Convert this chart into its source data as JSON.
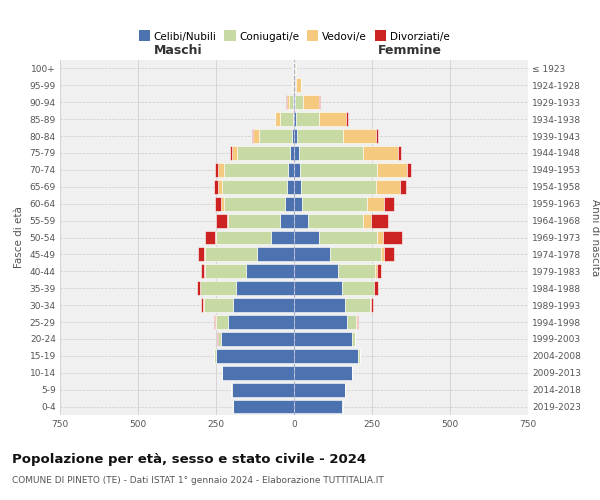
{
  "age_groups": [
    "0-4",
    "5-9",
    "10-14",
    "15-19",
    "20-24",
    "25-29",
    "30-34",
    "35-39",
    "40-44",
    "45-49",
    "50-54",
    "55-59",
    "60-64",
    "65-69",
    "70-74",
    "75-79",
    "80-84",
    "85-89",
    "90-94",
    "95-99",
    "100+"
  ],
  "birth_years": [
    "2019-2023",
    "2014-2018",
    "2009-2013",
    "2004-2008",
    "1999-2003",
    "1994-1998",
    "1989-1993",
    "1984-1988",
    "1979-1983",
    "1974-1978",
    "1969-1973",
    "1964-1968",
    "1959-1963",
    "1954-1958",
    "1949-1953",
    "1944-1948",
    "1939-1943",
    "1934-1938",
    "1929-1933",
    "1924-1928",
    "≤ 1923"
  ],
  "males": {
    "celibi": [
      195,
      200,
      230,
      250,
      235,
      210,
      195,
      185,
      155,
      120,
      75,
      45,
      30,
      22,
      18,
      12,
      8,
      4,
      2,
      1,
      1
    ],
    "coniugati": [
      2,
      2,
      2,
      5,
      10,
      40,
      95,
      115,
      130,
      165,
      175,
      165,
      195,
      210,
      205,
      170,
      105,
      42,
      14,
      3,
      1
    ],
    "vedovi": [
      0,
      0,
      0,
      0,
      0,
      2,
      2,
      2,
      2,
      4,
      4,
      5,
      8,
      12,
      22,
      18,
      18,
      14,
      8,
      2,
      1
    ],
    "divorziati": [
      0,
      0,
      0,
      0,
      2,
      3,
      5,
      8,
      12,
      20,
      32,
      35,
      20,
      12,
      8,
      6,
      4,
      2,
      1,
      0,
      0
    ]
  },
  "females": {
    "nubili": [
      155,
      162,
      185,
      205,
      185,
      170,
      165,
      155,
      140,
      115,
      80,
      45,
      25,
      22,
      18,
      15,
      10,
      8,
      4,
      2,
      1
    ],
    "coniugate": [
      2,
      2,
      2,
      5,
      10,
      30,
      80,
      100,
      120,
      165,
      185,
      175,
      210,
      240,
      248,
      205,
      148,
      72,
      25,
      4,
      1
    ],
    "vedove": [
      0,
      0,
      0,
      0,
      0,
      2,
      2,
      3,
      5,
      10,
      20,
      28,
      52,
      78,
      95,
      112,
      105,
      88,
      52,
      15,
      4
    ],
    "divorziate": [
      0,
      0,
      0,
      0,
      2,
      3,
      5,
      10,
      15,
      32,
      60,
      52,
      32,
      18,
      14,
      10,
      6,
      4,
      2,
      0,
      0
    ]
  },
  "colors": {
    "celibi": "#4c72b0",
    "coniugati": "#c8daa4",
    "vedovi": "#f5c97e",
    "divorziati": "#cc2222"
  },
  "xlim": 750,
  "title": "Popolazione per età, sesso e stato civile - 2024",
  "subtitle": "COMUNE DI PINETO (TE) - Dati ISTAT 1° gennaio 2024 - Elaborazione TUTTITALIA.IT",
  "xlabel_left": "Maschi",
  "xlabel_right": "Femmine",
  "ylabel_left": "Fasce di età",
  "ylabel_right": "Anni di nascita",
  "bg_color": "#ffffff",
  "plot_bg": "#f0f0f0",
  "grid_color": "#cccccc",
  "legend_labels": [
    "Celibi/Nubili",
    "Coniugati/e",
    "Vedovi/e",
    "Divorziati/e"
  ]
}
